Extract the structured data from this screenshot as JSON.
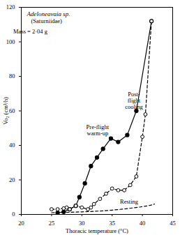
{
  "chart_data": {
    "type": "line",
    "title": "Adeloneavaia sp.",
    "subtitle": "(Saturniidae)",
    "x_label": "Thoracic temperature (°C)",
    "y_label": "V̇o₂ (cm³/h)",
    "xlim": [
      20,
      45
    ],
    "xticks": [
      20,
      25,
      30,
      35,
      40,
      45
    ],
    "ylim": [
      0,
      120
    ],
    "yticks": [
      0,
      20,
      40,
      60,
      80,
      100,
      120
    ],
    "grid": false,
    "series": [
      {
        "name": "Pre-flight warm-up",
        "color": "#000000",
        "marker": "filled",
        "line_style": "solid",
        "x": [
          26,
          27,
          28,
          29,
          29.6,
          30.5,
          31.5,
          32.5,
          33.5,
          34.8,
          36,
          37.5,
          39,
          41.5
        ],
        "values": [
          1,
          1.5,
          3,
          5,
          10,
          18,
          28,
          33,
          38,
          44,
          42,
          46,
          60,
          112
        ]
      },
      {
        "name": "Post-flight cooling",
        "color": "#000000",
        "marker": "open",
        "line_style": "dashed",
        "x": [
          25,
          26,
          27,
          27.5,
          28,
          29,
          30,
          31,
          31.5,
          32,
          33,
          34,
          35,
          36,
          37,
          38,
          39,
          40,
          40.5,
          41.5
        ],
        "values": [
          3,
          3,
          3.5,
          4,
          3,
          5,
          4,
          3,
          4,
          6,
          9,
          12,
          15,
          14,
          14,
          17,
          22,
          45,
          58,
          112
        ]
      },
      {
        "name": "Resting",
        "color": "#000000",
        "marker": "none",
        "line_style": "dashed",
        "x": [
          25,
          30,
          35,
          40,
          42
        ],
        "values": [
          1,
          1.5,
          2.5,
          4.5,
          6
        ]
      }
    ],
    "annotations": [
      {
        "text": "Mass = 2·04 g",
        "x": 21.5,
        "y": 106
      },
      {
        "text": "Pre-flight\nwarm-up",
        "x": 32.6,
        "y": 49
      },
      {
        "text": "Post-\nflight\ncooling",
        "x": 38.6,
        "y": 66
      },
      {
        "text": "Resting",
        "x": 37.8,
        "y": 7.5
      }
    ]
  }
}
